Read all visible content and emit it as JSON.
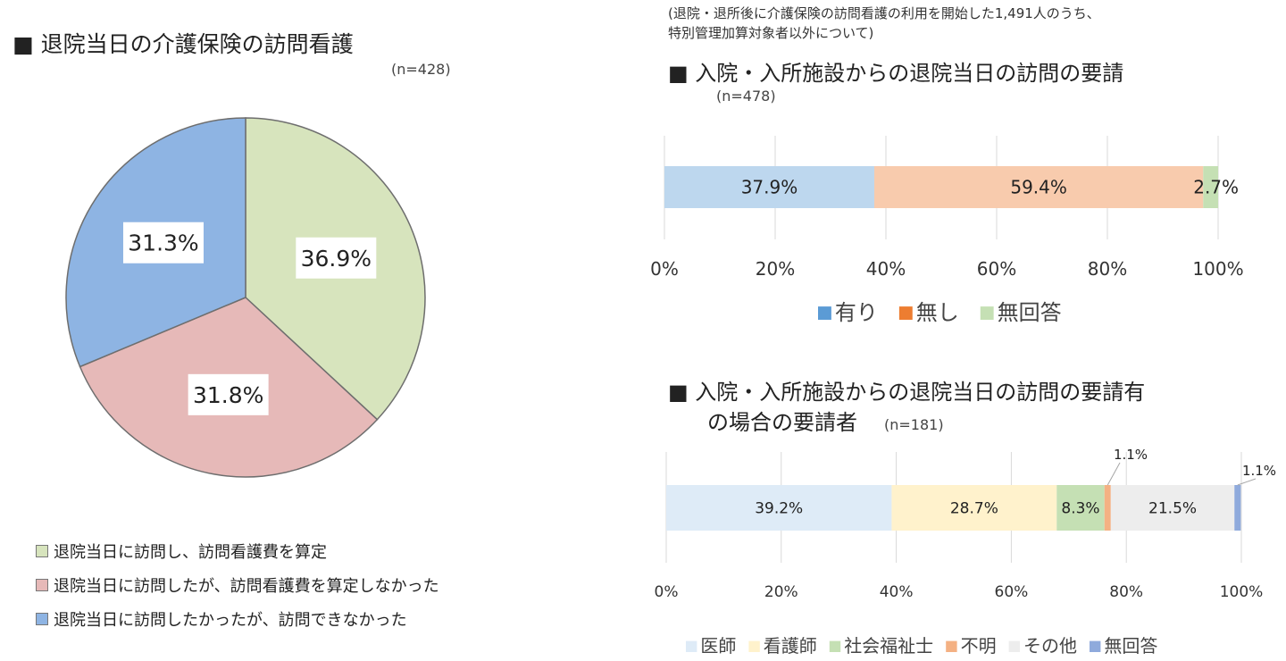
{
  "pie_chart": {
    "title": "■ 退院当日の介護保険の訪問看護",
    "n_label": "(n=428)"
  },
  "note": {
    "line1": "(退院・退所後に介護保険の訪問看護の利用を開始した1,491人のうち、",
    "line2": "特別管理加算対象者以外について)"
  },
  "chart1": {
    "title": "■ 入院・入所施設からの退院当日の訪問の要請",
    "n_label": "(n=478)"
  },
  "chart2": {
    "title_line1": "■ 入院・入所施設からの退院当日の訪問の要請有",
    "title_line2": "の場合の要請者",
    "n_label": "(n=181)"
  },
  "colors": {
    "pie_green": "#d7e4bd",
    "pie_pink": "#e6b9b8",
    "pie_blue": "#8eb4e3",
    "bar1_ari": "#bdd7ee",
    "bar1_nashi": "#f8cbad",
    "bar1_mukaito": "#c5e0b4",
    "leg1_ari": "#5b9bd5",
    "leg1_nashi": "#ed7d31",
    "leg1_mukaito": "#c5e0b4",
    "bar2_ishi": "#deebf7",
    "bar2_kangoshi": "#fff2cc",
    "bar2_shakai": "#c5e0b4",
    "bar2_fumei": "#f4b183",
    "bar2_sonota": "#ededed",
    "bar2_mukaito": "#8faadc",
    "grid": "#d9d9d9"
  },
  "chart_data": [
    {
      "type": "pie",
      "categories": [
        "退院当日に訪問し、訪問看護費を算定",
        "退院当日に訪問したが、訪問看護費を算定しなかった",
        "退院当日に訪問したかったが、訪問できなかった"
      ],
      "values": [
        36.9,
        31.8,
        31.3
      ],
      "labels": [
        "36.9%",
        "31.8%",
        "31.3%"
      ],
      "legend": "bottom"
    },
    {
      "type": "bar",
      "orientation": "horizontal",
      "stacked": true,
      "series": [
        {
          "name": "有り",
          "values": [
            37.9
          ],
          "label": "37.9%"
        },
        {
          "name": "無し",
          "values": [
            59.4
          ],
          "label": "59.4%"
        },
        {
          "name": "無回答",
          "values": [
            2.7
          ],
          "label": "2.7%"
        }
      ],
      "xlim": [
        0,
        100
      ],
      "xticks": [
        "0%",
        "20%",
        "40%",
        "60%",
        "80%",
        "100%"
      ],
      "grid": true,
      "legend": "bottom"
    },
    {
      "type": "bar",
      "orientation": "horizontal",
      "stacked": true,
      "series": [
        {
          "name": "医師",
          "values": [
            39.2
          ],
          "label": "39.2%"
        },
        {
          "name": "看護師",
          "values": [
            28.7
          ],
          "label": "28.7%"
        },
        {
          "name": "社会福祉士",
          "values": [
            8.3
          ],
          "label": "8.3%"
        },
        {
          "name": "不明",
          "values": [
            1.1
          ],
          "label": "1.1%"
        },
        {
          "name": "その他",
          "values": [
            21.5
          ],
          "label": "21.5%"
        },
        {
          "name": "無回答",
          "values": [
            1.1
          ],
          "label": "1.1%"
        }
      ],
      "xlim": [
        0,
        100
      ],
      "xticks": [
        "0%",
        "20%",
        "40%",
        "60%",
        "80%",
        "100%"
      ],
      "grid": true,
      "legend": "bottom"
    }
  ]
}
